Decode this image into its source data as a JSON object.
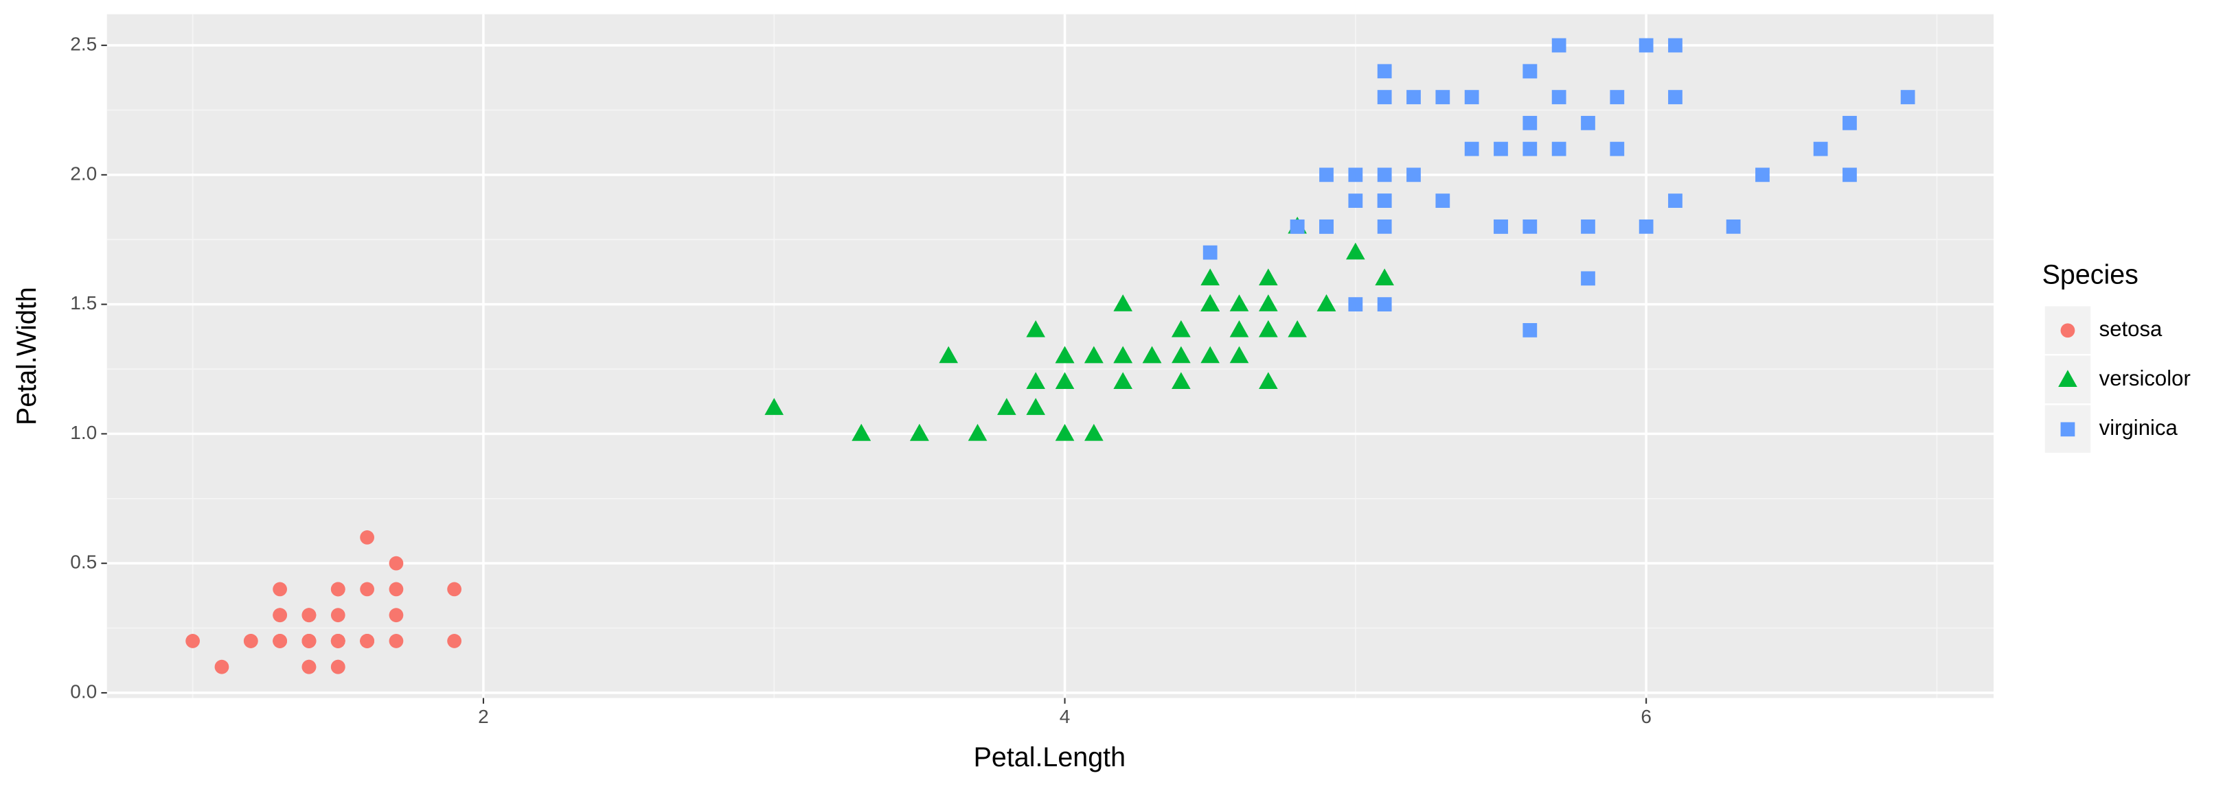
{
  "chart_data": {
    "type": "scatter",
    "x_label": "Petal.Length",
    "y_label": "Petal.Width",
    "legend_title": "Species",
    "legend": "right",
    "grid": true,
    "xlim": [
      0.705,
      7.195
    ],
    "xticks": [
      2,
      4,
      6
    ],
    "ylim": [
      -0.02,
      2.62
    ],
    "yticks": [
      {
        "value": 0,
        "label": "0.0"
      },
      0.5,
      {
        "value": 1,
        "label": "1.0"
      },
      1.5,
      {
        "value": 2,
        "label": "2.0"
      },
      2.5
    ],
    "series": [
      {
        "name": "setosa",
        "color": "#F8766D",
        "marker": "circle",
        "x": [
          1.4,
          1.4,
          1.3,
          1.5,
          1.4,
          1.7,
          1.4,
          1.5,
          1.4,
          1.5,
          1.5,
          1.6,
          1.4,
          1.1,
          1.2,
          1.5,
          1.3,
          1.4,
          1.7,
          1.5,
          1.7,
          1.5,
          1.0,
          1.7,
          1.9,
          1.6,
          1.6,
          1.5,
          1.4,
          1.6,
          1.6,
          1.5,
          1.5,
          1.4,
          1.5,
          1.2,
          1.3,
          1.4,
          1.3,
          1.5,
          1.3,
          1.3,
          1.3,
          1.6,
          1.9,
          1.4,
          1.6,
          1.4,
          1.5,
          1.4
        ],
        "values": [
          0.2,
          0.2,
          0.2,
          0.2,
          0.2,
          0.4,
          0.3,
          0.2,
          0.2,
          0.1,
          0.2,
          0.2,
          0.1,
          0.1,
          0.2,
          0.4,
          0.4,
          0.3,
          0.3,
          0.3,
          0.2,
          0.4,
          0.2,
          0.5,
          0.2,
          0.2,
          0.4,
          0.2,
          0.2,
          0.2,
          0.2,
          0.4,
          0.1,
          0.2,
          0.2,
          0.2,
          0.2,
          0.1,
          0.2,
          0.2,
          0.3,
          0.3,
          0.2,
          0.6,
          0.4,
          0.3,
          0.2,
          0.2,
          0.2,
          0.2
        ]
      },
      {
        "name": "versicolor",
        "color": "#00BA38",
        "marker": "triangle",
        "x": [
          4.7,
          4.5,
          4.9,
          4.0,
          4.6,
          4.5,
          4.7,
          3.3,
          4.6,
          3.9,
          3.5,
          4.2,
          4.0,
          4.7,
          3.6,
          4.4,
          4.5,
          4.1,
          4.5,
          3.9,
          4.8,
          4.0,
          4.9,
          4.7,
          4.3,
          4.4,
          4.8,
          5.0,
          4.5,
          3.5,
          3.8,
          3.7,
          3.9,
          5.1,
          4.5,
          4.5,
          4.7,
          4.4,
          4.1,
          4.0,
          4.4,
          4.6,
          4.0,
          3.3,
          4.2,
          4.2,
          4.2,
          4.3,
          3.0,
          4.1
        ],
        "values": [
          1.4,
          1.5,
          1.5,
          1.3,
          1.5,
          1.3,
          1.6,
          1.0,
          1.3,
          1.4,
          1.0,
          1.5,
          1.0,
          1.4,
          1.3,
          1.4,
          1.5,
          1.0,
          1.5,
          1.1,
          1.8,
          1.3,
          1.5,
          1.2,
          1.3,
          1.4,
          1.4,
          1.7,
          1.5,
          1.0,
          1.1,
          1.0,
          1.2,
          1.6,
          1.5,
          1.6,
          1.5,
          1.3,
          1.3,
          1.3,
          1.2,
          1.4,
          1.2,
          1.0,
          1.3,
          1.2,
          1.3,
          1.3,
          1.1,
          1.3
        ]
      },
      {
        "name": "virginica",
        "color": "#619CFF",
        "marker": "square",
        "x": [
          6.0,
          5.1,
          5.9,
          5.6,
          5.8,
          6.6,
          4.5,
          6.3,
          5.8,
          6.1,
          5.1,
          5.3,
          5.5,
          5.0,
          5.1,
          5.3,
          5.5,
          6.7,
          6.9,
          5.0,
          5.7,
          4.9,
          6.7,
          4.9,
          5.7,
          6.0,
          4.8,
          4.9,
          5.6,
          5.8,
          6.1,
          6.4,
          5.6,
          5.1,
          5.6,
          6.1,
          5.6,
          5.5,
          4.8,
          5.4,
          5.6,
          5.1,
          5.1,
          5.9,
          5.7,
          5.2,
          5.0,
          5.2,
          5.4,
          5.1
        ],
        "values": [
          2.5,
          1.9,
          2.1,
          1.8,
          2.2,
          2.1,
          1.7,
          1.8,
          1.8,
          2.5,
          2.0,
          1.9,
          2.1,
          2.0,
          2.4,
          2.3,
          1.8,
          2.2,
          2.3,
          1.5,
          2.3,
          2.0,
          2.0,
          1.8,
          2.1,
          1.8,
          1.8,
          1.8,
          2.1,
          1.6,
          1.9,
          2.0,
          2.2,
          1.5,
          1.4,
          2.3,
          2.4,
          1.8,
          1.8,
          2.1,
          2.4,
          2.3,
          1.9,
          2.3,
          2.5,
          2.3,
          1.9,
          2.0,
          2.3,
          1.8
        ]
      }
    ]
  }
}
